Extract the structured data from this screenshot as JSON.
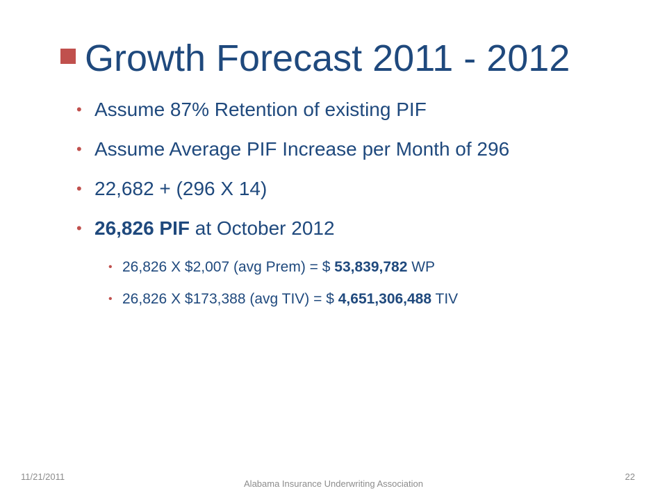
{
  "title": "Growth Forecast 2011 - 2012",
  "bullets": [
    {
      "text": "Assume 87% Retention of existing PIF"
    },
    {
      "text": "Assume Average PIF Increase per Month of 296"
    },
    {
      "text": "22,682 + (296 X 14)"
    },
    {
      "bold": "26,826 PIF",
      "rest": " at October 2012"
    }
  ],
  "sub_bullets": [
    {
      "pre": "26,826 X $2,007 (avg Prem) = $ ",
      "bold": "53,839,782",
      "post": " WP"
    },
    {
      "pre": "26,826 X $173,388 (avg TIV) = $ ",
      "bold": "4,651,306,488",
      "post": " TIV"
    }
  ],
  "footer": {
    "date": "11/21/2011",
    "org": "Alabama Insurance Underwriting Association",
    "page": "22"
  },
  "colors": {
    "title": "#1f497d",
    "bullet_accent": "#c0504d",
    "footer_text": "#8c8c8c"
  }
}
